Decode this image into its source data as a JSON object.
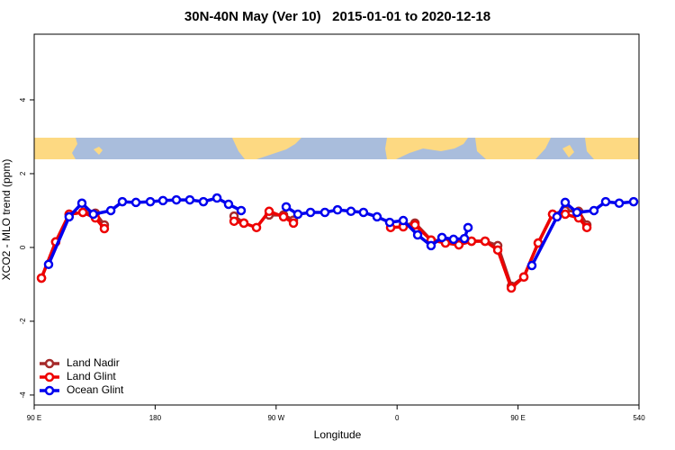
{
  "chart_data": {
    "type": "line",
    "title": "30N-40N May (Ver 10)   2015-01-01 to 2020-12-18",
    "x_label": "Longitude",
    "y_label": "XCO2 - MLO trend (ppm)",
    "xlim": [
      90,
      540
    ],
    "ylim": [
      -4.27,
      5.78
    ],
    "xticks": [
      {
        "value": 90,
        "label": "90 E"
      },
      180,
      {
        "value": 270,
        "label": "90 W"
      },
      {
        "value": 360,
        "label": "0"
      },
      {
        "value": 450,
        "label": "90 E"
      },
      540
    ],
    "yticks": [
      -4,
      -2,
      0,
      2,
      4
    ],
    "legend": "bottom-left",
    "series": [
      {
        "name": "Land Nadir",
        "color": "#a52a2a",
        "x": [
          95.4,
          106,
          116,
          126.2,
          135.5,
          142.2,
          null,
          238.7,
          246,
          null,
          264.8,
          275.5,
          282.9,
          null,
          364.6,
          373.3,
          385.3,
          396,
          null,
          415.4,
          425.5,
          434.9,
          445,
          454.3,
          465,
          475.7,
          485.1,
          495.1,
          501.2
        ],
        "values": [
          -0.83,
          0.15,
          0.9,
          0.95,
          0.93,
          0.61,
          null,
          0.85,
          0.66,
          null,
          0.88,
          0.88,
          0.74,
          null,
          0.6,
          0.66,
          0.2,
          0.17,
          null,
          0.17,
          0.17,
          0.05,
          -1.05,
          -0.8,
          0.12,
          0.9,
          1.0,
          0.98,
          0.61
        ]
      },
      {
        "name": "Land Glint",
        "color": "#ee0000",
        "x": [
          95.4,
          106,
          116,
          126.2,
          135.5,
          142.2,
          null,
          238.7,
          246,
          255.4,
          264.8,
          275.5,
          282.9,
          null,
          355.2,
          364.6,
          373.3,
          385.3,
          396,
          406,
          415.4,
          425.5,
          434.9,
          445,
          454.3,
          465,
          475.7,
          485.1,
          495.1,
          501.2
        ],
        "values": [
          -0.83,
          0.15,
          0.9,
          0.95,
          0.8,
          0.51,
          null,
          0.71,
          0.66,
          0.54,
          0.98,
          0.83,
          0.66,
          null,
          0.54,
          0.56,
          0.61,
          0.2,
          0.12,
          0.07,
          0.17,
          0.17,
          -0.07,
          -1.1,
          -0.8,
          0.12,
          0.9,
          0.9,
          0.8,
          0.54
        ]
      },
      {
        "name": "Ocean Glint",
        "color": "#0000ee",
        "x": [
          100.7,
          116,
          125.5,
          134,
          147,
          155.6,
          165.7,
          176.4,
          185.8,
          195.8,
          205.8,
          215.9,
          226,
          234.6,
          244,
          null,
          277.5,
          286.2,
          295.6,
          306.3,
          315.7,
          325.7,
          335,
          345.1,
          354.5,
          364.6,
          375.3,
          385.3,
          393.4,
          402,
          410.1,
          412.8,
          null,
          460.3,
          479,
          485.1,
          493.8,
          506.5,
          515.2,
          525.3,
          536
        ],
        "values": [
          -0.46,
          0.83,
          1.2,
          0.9,
          1.0,
          1.24,
          1.22,
          1.24,
          1.27,
          1.29,
          1.29,
          1.24,
          1.34,
          1.17,
          1.0,
          null,
          1.1,
          0.9,
          0.95,
          0.95,
          1.02,
          0.98,
          0.95,
          0.83,
          0.68,
          0.73,
          0.34,
          0.05,
          0.27,
          0.22,
          0.24,
          0.54,
          null,
          -0.49,
          0.83,
          1.22,
          0.95,
          1.0,
          1.24,
          1.2,
          1.24
        ]
      }
    ]
  }
}
